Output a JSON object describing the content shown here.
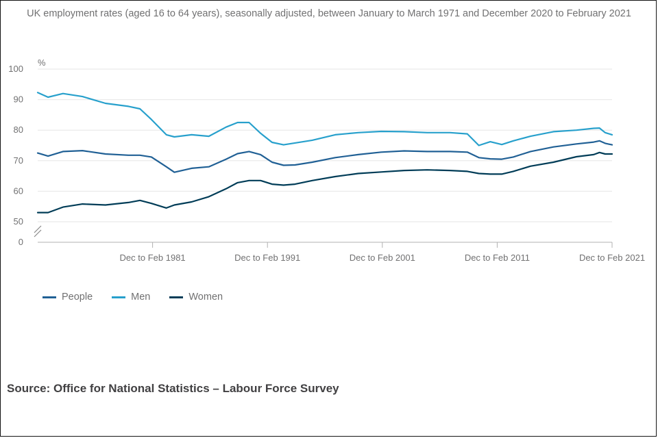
{
  "title": "UK employment rates (aged 16 to 64 years), seasonally adjusted, between January to March 1971 and December 2020 to February 2021",
  "source": "Source: Office for National Statistics – Labour Force Survey",
  "legend": {
    "people": "People",
    "men": "Men",
    "women": "Women"
  },
  "colors": {
    "people": "#206095",
    "men": "#27a0cc",
    "women": "#003c57",
    "grid": "#e6e6e6",
    "axis": "#b0b0b0"
  },
  "chart_data": {
    "type": "line",
    "title": "UK employment rates (aged 16 to 64 years), seasonally adjusted, between January to March 1971 and December 2020 to February 2021",
    "ylabel": "%",
    "xlabel": "",
    "ylim": [
      50,
      100
    ],
    "y_axis_break": true,
    "y_ticks": [
      100,
      90,
      80,
      70,
      60,
      50,
      0
    ],
    "xlim": [
      1971.1,
      2021.1
    ],
    "x_ticks": [
      {
        "x": 1981.1,
        "label": "Dec to Feb 1981"
      },
      {
        "x": 1991.1,
        "label": "Dec to Feb 1991"
      },
      {
        "x": 2001.1,
        "label": "Dec to Feb 2001"
      },
      {
        "x": 2011.1,
        "label": "Dec to Feb 2011"
      },
      {
        "x": 2021.1,
        "label": "Dec to Feb 2021"
      }
    ],
    "grid": true,
    "legend_position": "bottom-left",
    "series": [
      {
        "name": "People",
        "key": "people",
        "x": [
          1971.1,
          1972,
          1973.3,
          1975,
          1977,
          1979,
          1980,
          1981,
          1982.3,
          1983,
          1984.5,
          1986,
          1987.5,
          1988.5,
          1989.5,
          1990.5,
          1991.5,
          1992.5,
          1993.5,
          1995,
          1997,
          1999,
          2001,
          2003,
          2005,
          2007,
          2008.5,
          2009.5,
          2010.5,
          2011.5,
          2012.5,
          2014,
          2016,
          2018,
          2019.5,
          2020,
          2020.5,
          2021.1
        ],
        "values": [
          72.5,
          71.5,
          73,
          73.3,
          72.2,
          71.8,
          71.8,
          71.2,
          68,
          66.2,
          67.5,
          68,
          70.5,
          72.3,
          73,
          72,
          69.5,
          68.5,
          68.6,
          69.5,
          71,
          72,
          72.8,
          73.2,
          73,
          73,
          72.8,
          71,
          70.6,
          70.5,
          71.2,
          73,
          74.5,
          75.5,
          76.1,
          76.5,
          75.7,
          75.2
        ]
      },
      {
        "name": "Men",
        "key": "men",
        "x": [
          1971.1,
          1972,
          1973.3,
          1975,
          1977,
          1979,
          1980,
          1981,
          1982.3,
          1983,
          1984.5,
          1986,
          1987.5,
          1988.5,
          1989.5,
          1990.5,
          1991.5,
          1992.5,
          1993.5,
          1995,
          1997,
          1999,
          2001,
          2003,
          2005,
          2007,
          2008.5,
          2009.5,
          2010.5,
          2011.5,
          2012.5,
          2014,
          2016,
          2018,
          2019.5,
          2020,
          2020.5,
          2021.1
        ],
        "values": [
          92.3,
          90.8,
          92,
          91,
          88.8,
          87.8,
          87,
          83.5,
          78.5,
          77.8,
          78.5,
          78,
          81,
          82.5,
          82.5,
          79,
          76,
          75.2,
          75.8,
          76.7,
          78.5,
          79.2,
          79.6,
          79.5,
          79.2,
          79.2,
          78.8,
          75,
          76.2,
          75.3,
          76.5,
          78,
          79.5,
          80,
          80.6,
          80.7,
          79.2,
          78.5
        ]
      },
      {
        "name": "Women",
        "key": "women",
        "x": [
          1971.1,
          1972,
          1973.3,
          1975,
          1977,
          1979,
          1980,
          1981,
          1982.3,
          1983,
          1984.5,
          1986,
          1987.5,
          1988.5,
          1989.5,
          1990.5,
          1991.5,
          1992.5,
          1993.5,
          1995,
          1997,
          1999,
          2001,
          2003,
          2005,
          2007,
          2008.5,
          2009.5,
          2010.5,
          2011.5,
          2012.5,
          2014,
          2016,
          2018,
          2019.5,
          2020,
          2020.5,
          2021.1
        ],
        "values": [
          53,
          53,
          54.8,
          55.8,
          55.5,
          56.3,
          57,
          56,
          54.5,
          55.5,
          56.5,
          58.2,
          60.8,
          62.8,
          63.5,
          63.5,
          62.3,
          62,
          62.3,
          63.5,
          64.8,
          65.8,
          66.3,
          66.8,
          67,
          66.8,
          66.5,
          65.8,
          65.6,
          65.6,
          66.5,
          68.2,
          69.5,
          71.3,
          72,
          72.7,
          72.2,
          72.2
        ]
      }
    ]
  }
}
